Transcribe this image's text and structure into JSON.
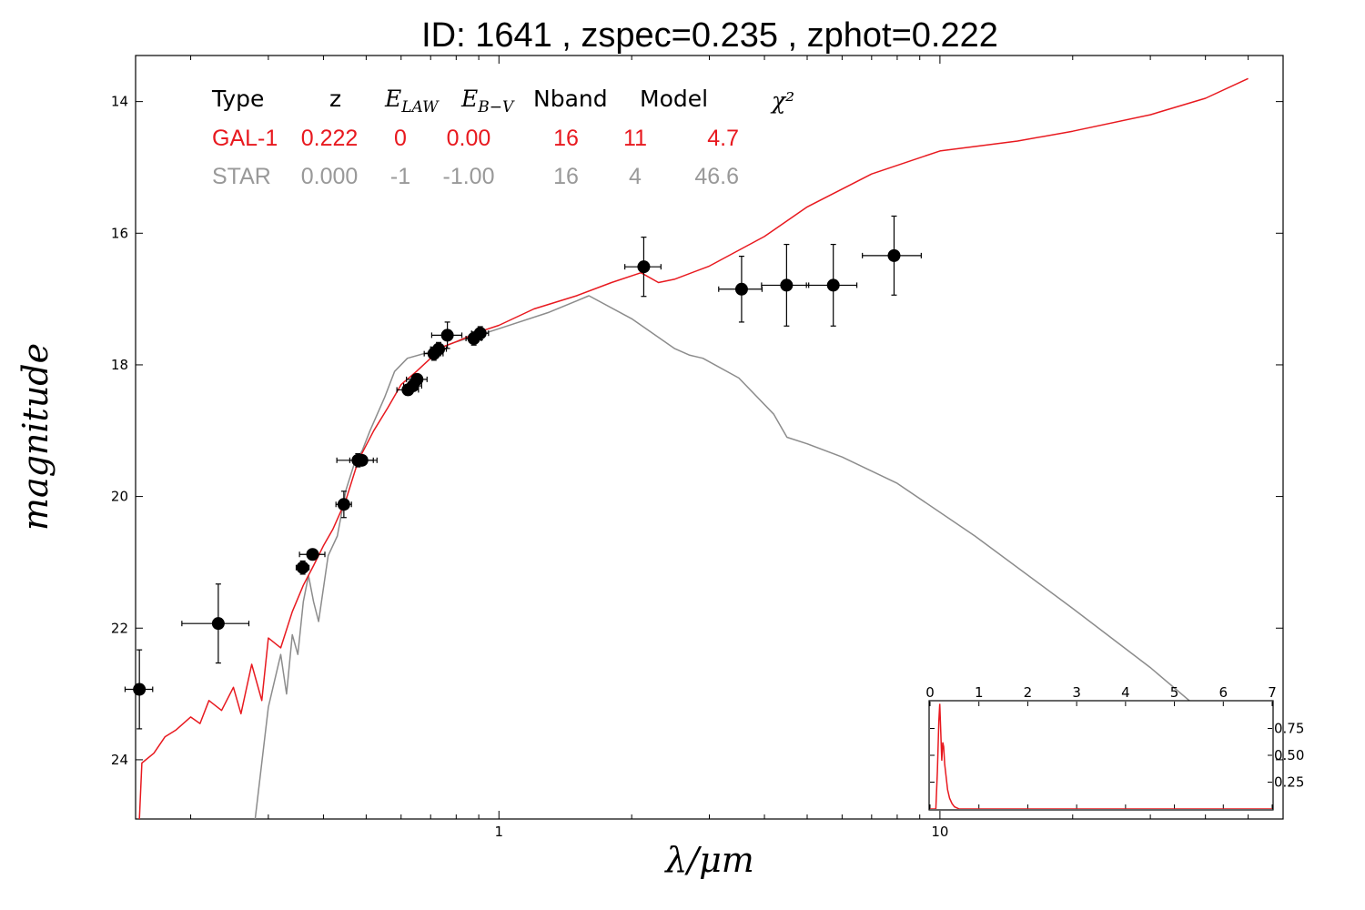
{
  "chart_data": {
    "type": "line",
    "title": "ID:  1641  , zspec=0.235 , zphot=0.222",
    "xlabel": "λ/μm",
    "ylabel": "magnitude",
    "xscale": "log",
    "yaxis_inverted": true,
    "xlim": [
      0.15,
      60
    ],
    "ylim": [
      24.9,
      13.3
    ],
    "x_tick_labels": [
      "1",
      "10"
    ],
    "y_ticks": [
      14,
      16,
      18,
      20,
      22,
      24
    ],
    "y_tick_labels": [
      "14",
      "16",
      "18",
      "20",
      "22",
      "24"
    ],
    "colors": {
      "galaxy": "#e8191f",
      "star": "#8c8c8c",
      "points": "#000000"
    },
    "fit_table": {
      "headers": [
        "Type",
        "z",
        "E_LAW",
        "E_B-V",
        "Nband",
        "Model",
        "χ²"
      ],
      "rows": [
        {
          "type": "GAL-1",
          "z": "0.222",
          "e_law": "0",
          "e_bv": "0.00",
          "nband": "16",
          "model": "11",
          "chi2": "4.7",
          "color": "#e8191f"
        },
        {
          "type": "STAR",
          "z": "0.000",
          "e_law": "-1",
          "e_bv": "-1.00",
          "nband": "16",
          "model": "4",
          "chi2": "46.6",
          "color": "#999999"
        }
      ]
    },
    "observations": [
      {
        "x": 0.153,
        "y": 22.93,
        "xerr": 0.011,
        "yerr": 0.6
      },
      {
        "x": 0.231,
        "y": 21.93,
        "xerr": 0.04,
        "yerr": 0.6
      },
      {
        "x": 0.359,
        "y": 21.08,
        "xerr": 0.012,
        "yerr": 0.1
      },
      {
        "x": 0.378,
        "y": 20.88,
        "xerr": 0.025,
        "yerr": 0.08
      },
      {
        "x": 0.445,
        "y": 20.12,
        "xerr": 0.018,
        "yerr": 0.2
      },
      {
        "x": 0.479,
        "y": 19.45,
        "xerr": 0.05,
        "yerr": 0.1
      },
      {
        "x": 0.489,
        "y": 19.45,
        "xerr": 0.03,
        "yerr": 0.05
      },
      {
        "x": 0.622,
        "y": 18.38,
        "xerr": 0.035,
        "yerr": 0.08
      },
      {
        "x": 0.638,
        "y": 18.32,
        "xerr": 0.03,
        "yerr": 0.08
      },
      {
        "x": 0.652,
        "y": 18.22,
        "xerr": 0.035,
        "yerr": 0.08
      },
      {
        "x": 0.712,
        "y": 17.83,
        "xerr": 0.035,
        "yerr": 0.1
      },
      {
        "x": 0.73,
        "y": 17.76,
        "xerr": 0.03,
        "yerr": 0.1
      },
      {
        "x": 0.764,
        "y": 17.55,
        "xerr": 0.06,
        "yerr": 0.2
      },
      {
        "x": 0.877,
        "y": 17.6,
        "xerr": 0.035,
        "yerr": 0.1
      },
      {
        "x": 0.907,
        "y": 17.52,
        "xerr": 0.04,
        "yerr": 0.1
      },
      {
        "x": 2.13,
        "y": 16.51,
        "xerr": 0.2,
        "yerr": 0.45
      },
      {
        "x": 3.55,
        "y": 16.85,
        "xerr": 0.4,
        "yerr": 0.5
      },
      {
        "x": 4.49,
        "y": 16.79,
        "xerr": 0.55,
        "yerr": 0.62
      },
      {
        "x": 5.73,
        "y": 16.79,
        "xerr": 0.75,
        "yerr": 0.62
      },
      {
        "x": 7.87,
        "y": 16.34,
        "xerr": 1.2,
        "yerr": 0.6
      }
    ],
    "series": [
      {
        "name": "GAL-1",
        "color": "#e8191f",
        "x": [
          0.153,
          0.155,
          0.165,
          0.175,
          0.185,
          0.2,
          0.21,
          0.22,
          0.235,
          0.25,
          0.26,
          0.275,
          0.29,
          0.3,
          0.32,
          0.34,
          0.36,
          0.38,
          0.4,
          0.42,
          0.45,
          0.48,
          0.52,
          0.56,
          0.6,
          0.65,
          0.7,
          0.75,
          0.8,
          0.9,
          1.0,
          1.2,
          1.5,
          1.8,
          2.1,
          2.3,
          2.5,
          3.0,
          4.0,
          5.0,
          7.0,
          10.0,
          15.0,
          20.0,
          30.0,
          40.0,
          50.0
        ],
        "y": [
          24.9,
          24.05,
          23.9,
          23.65,
          23.55,
          23.35,
          23.45,
          23.1,
          23.25,
          22.9,
          23.3,
          22.55,
          23.1,
          22.15,
          22.3,
          21.75,
          21.35,
          21.05,
          20.75,
          20.5,
          20.05,
          19.45,
          19.0,
          18.65,
          18.3,
          18.1,
          17.9,
          17.72,
          17.65,
          17.5,
          17.4,
          17.15,
          16.95,
          16.75,
          16.6,
          16.75,
          16.7,
          16.5,
          16.05,
          15.6,
          15.1,
          14.75,
          14.6,
          14.45,
          14.2,
          13.95,
          13.65
        ]
      },
      {
        "name": "STAR",
        "color": "#8c8c8c",
        "x": [
          0.28,
          0.3,
          0.32,
          0.33,
          0.34,
          0.35,
          0.36,
          0.37,
          0.38,
          0.39,
          0.41,
          0.43,
          0.45,
          0.47,
          0.49,
          0.51,
          0.55,
          0.58,
          0.62,
          0.7,
          0.8,
          0.9,
          1.0,
          1.3,
          1.6,
          2.0,
          2.5,
          2.7,
          2.9,
          3.5,
          4.2,
          4.5,
          5.0,
          6.0,
          8.0,
          12.0,
          20.0,
          30.0,
          45.0
        ],
        "y": [
          24.9,
          23.2,
          22.4,
          23.0,
          22.1,
          22.4,
          21.6,
          21.2,
          21.6,
          21.9,
          20.9,
          20.6,
          19.9,
          19.5,
          19.3,
          19.0,
          18.5,
          18.1,
          17.9,
          17.8,
          17.65,
          17.55,
          17.45,
          17.2,
          16.95,
          17.3,
          17.75,
          17.85,
          17.9,
          18.2,
          18.75,
          19.1,
          19.2,
          19.4,
          19.8,
          20.6,
          21.7,
          22.6,
          23.6
        ]
      }
    ],
    "inset": {
      "type": "line",
      "xlim": [
        0,
        7
      ],
      "ylim": [
        0,
        1.0
      ],
      "x_ticks": [
        0,
        1,
        2,
        3,
        4,
        5,
        6,
        7
      ],
      "x_tick_labels": [
        "0",
        "1",
        "2",
        "3",
        "4",
        "5",
        "6",
        "7"
      ],
      "y_ticks": [
        0.25,
        0.5,
        0.75
      ],
      "y_tick_labels": [
        "0.25",
        "0.50",
        "0.75"
      ],
      "color": "#e8191f",
      "x": [
        0.0,
        0.12,
        0.15,
        0.18,
        0.2,
        0.22,
        0.24,
        0.26,
        0.28,
        0.3,
        0.33,
        0.36,
        0.4,
        0.45,
        0.5,
        0.55,
        0.6,
        7.0
      ],
      "y": [
        0.0,
        0.0,
        0.35,
        0.82,
        0.98,
        0.72,
        0.45,
        0.62,
        0.58,
        0.42,
        0.3,
        0.18,
        0.1,
        0.05,
        0.02,
        0.01,
        0.0,
        0.0
      ]
    }
  }
}
